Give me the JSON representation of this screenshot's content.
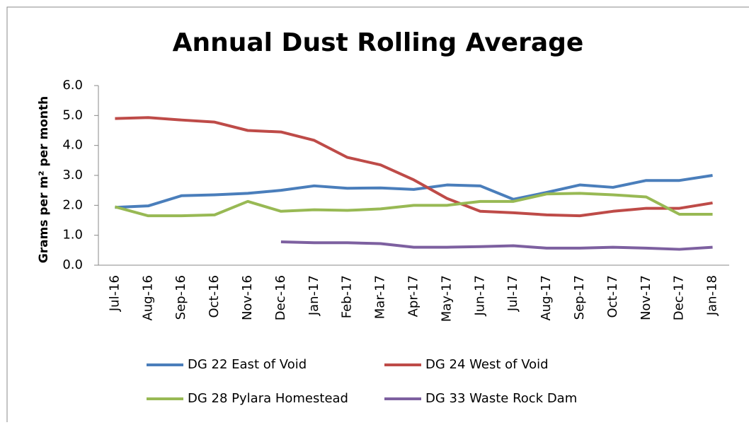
{
  "chart_data": {
    "type": "line",
    "title": "Annual Dust Rolling Average",
    "y_label": "Grams per m² per month",
    "categories": [
      "Jul-16",
      "Aug-16",
      "Sep-16",
      "Oct-16",
      "Nov-16",
      "Dec-16",
      "Jan-17",
      "Feb-17",
      "Mar-17",
      "Apr-17",
      "May-17",
      "Jun-17",
      "Jul-17",
      "Aug-17",
      "Sep-17",
      "Oct-17",
      "Nov-17",
      "Dec-17",
      "Jan-18"
    ],
    "series": [
      {
        "name": "DG 22 East of Void",
        "color": "#4a7ebb",
        "values": [
          1.93,
          1.98,
          2.32,
          2.35,
          2.4,
          2.5,
          2.65,
          2.57,
          2.58,
          2.53,
          2.68,
          2.65,
          2.2,
          2.43,
          2.68,
          2.6,
          2.83,
          2.83,
          3.0
        ]
      },
      {
        "name": "DG 24 West of Void",
        "color": "#be4b48",
        "values": [
          4.9,
          4.93,
          4.85,
          4.78,
          4.5,
          4.45,
          4.17,
          3.6,
          3.35,
          2.85,
          2.23,
          1.8,
          1.75,
          1.68,
          1.65,
          1.8,
          1.9,
          1.9,
          2.08
        ]
      },
      {
        "name": "DG 28 Pylara Homestead",
        "color": "#98b954",
        "values": [
          1.95,
          1.65,
          1.65,
          1.68,
          2.13,
          1.8,
          1.85,
          1.83,
          1.88,
          2.0,
          2.0,
          2.13,
          2.13,
          2.38,
          2.4,
          2.35,
          2.28,
          1.7,
          1.7
        ]
      },
      {
        "name": "DG 33 Waste Rock Dam",
        "color": "#7d60a0",
        "values": [
          null,
          null,
          null,
          null,
          null,
          0.78,
          0.75,
          0.75,
          0.72,
          0.6,
          0.6,
          0.62,
          0.65,
          0.57,
          0.57,
          0.6,
          0.57,
          0.53,
          0.6
        ]
      }
    ],
    "ylim": [
      0,
      6
    ],
    "yticks": [
      {
        "value": 0,
        "label": "0.0"
      },
      {
        "value": 1,
        "label": "1.0"
      },
      {
        "value": 2,
        "label": "2.0"
      },
      {
        "value": 3,
        "label": "3.0"
      },
      {
        "value": 4,
        "label": "4.0"
      },
      {
        "value": 5,
        "label": "5.0"
      },
      {
        "value": 6,
        "label": "6.0"
      }
    ]
  }
}
